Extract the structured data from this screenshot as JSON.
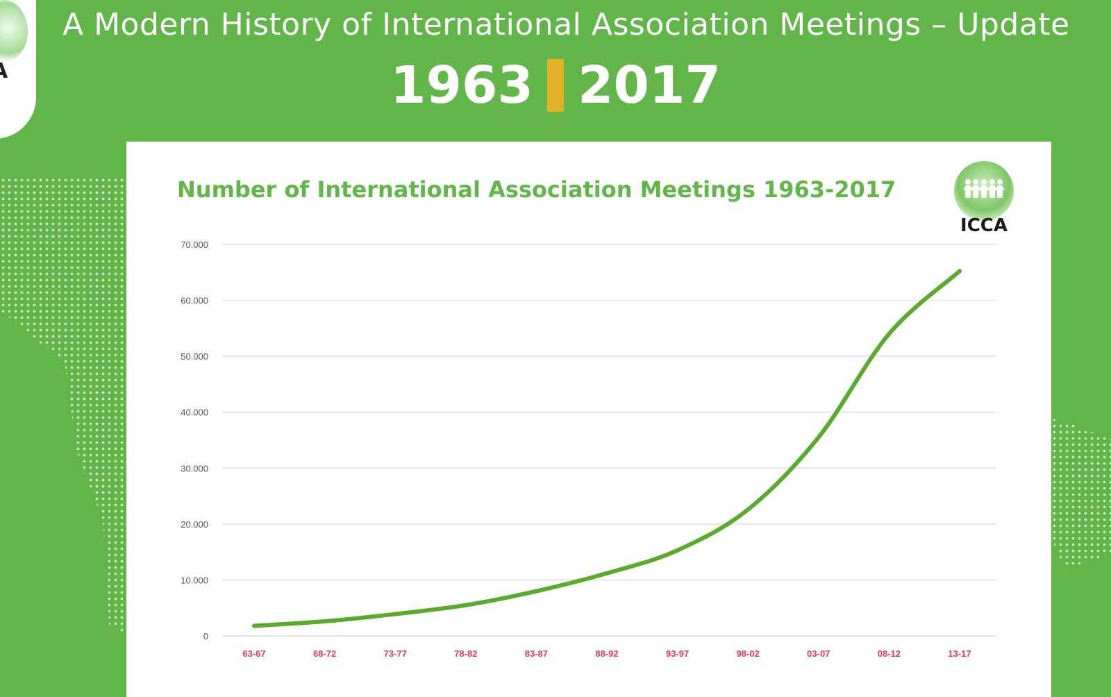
{
  "header": {
    "title": "A Modern History of International Association Meetings – Update",
    "year_start": "1963",
    "year_end": "2017",
    "logo_text": "A"
  },
  "colors": {
    "background": "#62b649",
    "panel": "#ffffff",
    "accent_bar": "#e2b12a",
    "line": "#5aaa2d",
    "x_tick": "#e23a5a",
    "grid": "#e6e6e6"
  },
  "panel": {
    "logo_text": "ICCA"
  },
  "chart_data": {
    "type": "line",
    "title": "Number of International Association Meetings  1963-2017",
    "xlabel": "",
    "ylabel": "",
    "categories": [
      "63-67",
      "68-72",
      "73-77",
      "78-82",
      "83-87",
      "88-92",
      "93-97",
      "98-02",
      "03-07",
      "08-12",
      "13-17"
    ],
    "series": [
      {
        "values": [
          1800,
          2600,
          3900,
          5500,
          8000,
          11200,
          15300,
          22600,
          35500,
          54000,
          65200
        ]
      }
    ],
    "ylim": [
      0,
      70000
    ],
    "yticks": [
      0,
      10000,
      20000,
      30000,
      40000,
      50000,
      60000,
      70000
    ],
    "ytick_labels": [
      "0",
      "10.000",
      "20.000",
      "30.000",
      "40.000",
      "50.000",
      "60.000",
      "70.000"
    ],
    "grid": true,
    "legend": "none"
  }
}
